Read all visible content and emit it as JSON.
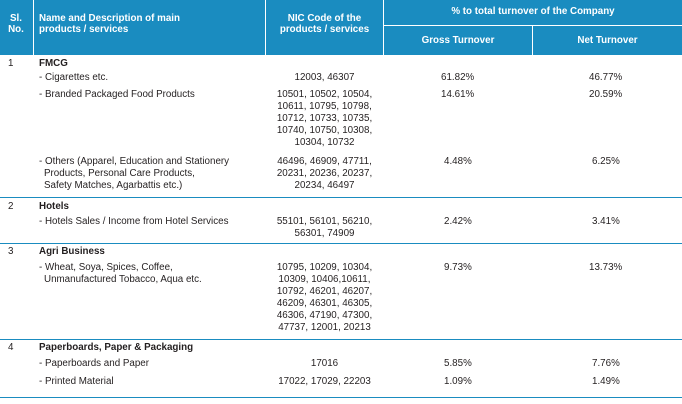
{
  "header": {
    "sl": "Sl.",
    "no": "No.",
    "name_line1": "Name and Description of main",
    "name_line2": "products / services",
    "nic_line1": "NIC Code of the",
    "nic_line2": "products / services",
    "pct_title": "% to total turnover of the Company",
    "gross": "Gross Turnover",
    "net": "Net Turnover"
  },
  "rows": [
    {
      "no": "1",
      "category": "FMCG",
      "items": [
        {
          "name": [
            "- Cigarettes etc."
          ],
          "nic": [
            "12003, 46307"
          ],
          "gross": "61.82%",
          "net": "46.77%"
        },
        {
          "name": [
            "- Branded Packaged Food Products"
          ],
          "nic": [
            "10501, 10502, 10504,",
            "10611, 10795, 10798,",
            "10712, 10733, 10735,",
            "10740, 10750, 10308,",
            "10304, 10732"
          ],
          "gross": "14.61%",
          "net": "20.59%"
        },
        {
          "name": [
            "- Others (Apparel, Education and Stationery",
            "Products, Personal Care Products,",
            "Safety Matches, Agarbattis etc.)"
          ],
          "nic": [
            "46496, 46909, 47711,",
            "20231, 20236, 20237,",
            "20234, 46497"
          ],
          "gross": "4.48%",
          "net": "6.25%"
        }
      ]
    },
    {
      "no": "2",
      "category": "Hotels",
      "items": [
        {
          "name": [
            "- Hotels Sales / Income from Hotel Services"
          ],
          "nic": [
            "55101, 56101, 56210,",
            "56301, 74909"
          ],
          "gross": "2.42%",
          "net": "3.41%"
        }
      ]
    },
    {
      "no": "3",
      "category": "Agri Business",
      "items": [
        {
          "name": [
            "- Wheat, Soya, Spices, Coffee,",
            "Unmanufactured Tobacco, Aqua etc."
          ],
          "nic": [
            "10795, 10209, 10304,",
            "10309, 10406,10611,",
            "10792, 46201, 46207,",
            "46209, 46301, 46305,",
            "46306, 47190, 47300,",
            "47737, 12001, 20213"
          ],
          "gross": "9.73%",
          "net": "13.73%"
        }
      ]
    },
    {
      "no": "4",
      "category": "Paperboards, Paper & Packaging",
      "items": [
        {
          "name": [
            "- Paperboards and Paper"
          ],
          "nic": [
            "17016"
          ],
          "gross": "5.85%",
          "net": "7.76%"
        },
        {
          "name": [
            "- Printed Material"
          ],
          "nic": [
            "17022, 17029, 22203"
          ],
          "gross": "1.09%",
          "net": "1.49%"
        }
      ]
    }
  ]
}
